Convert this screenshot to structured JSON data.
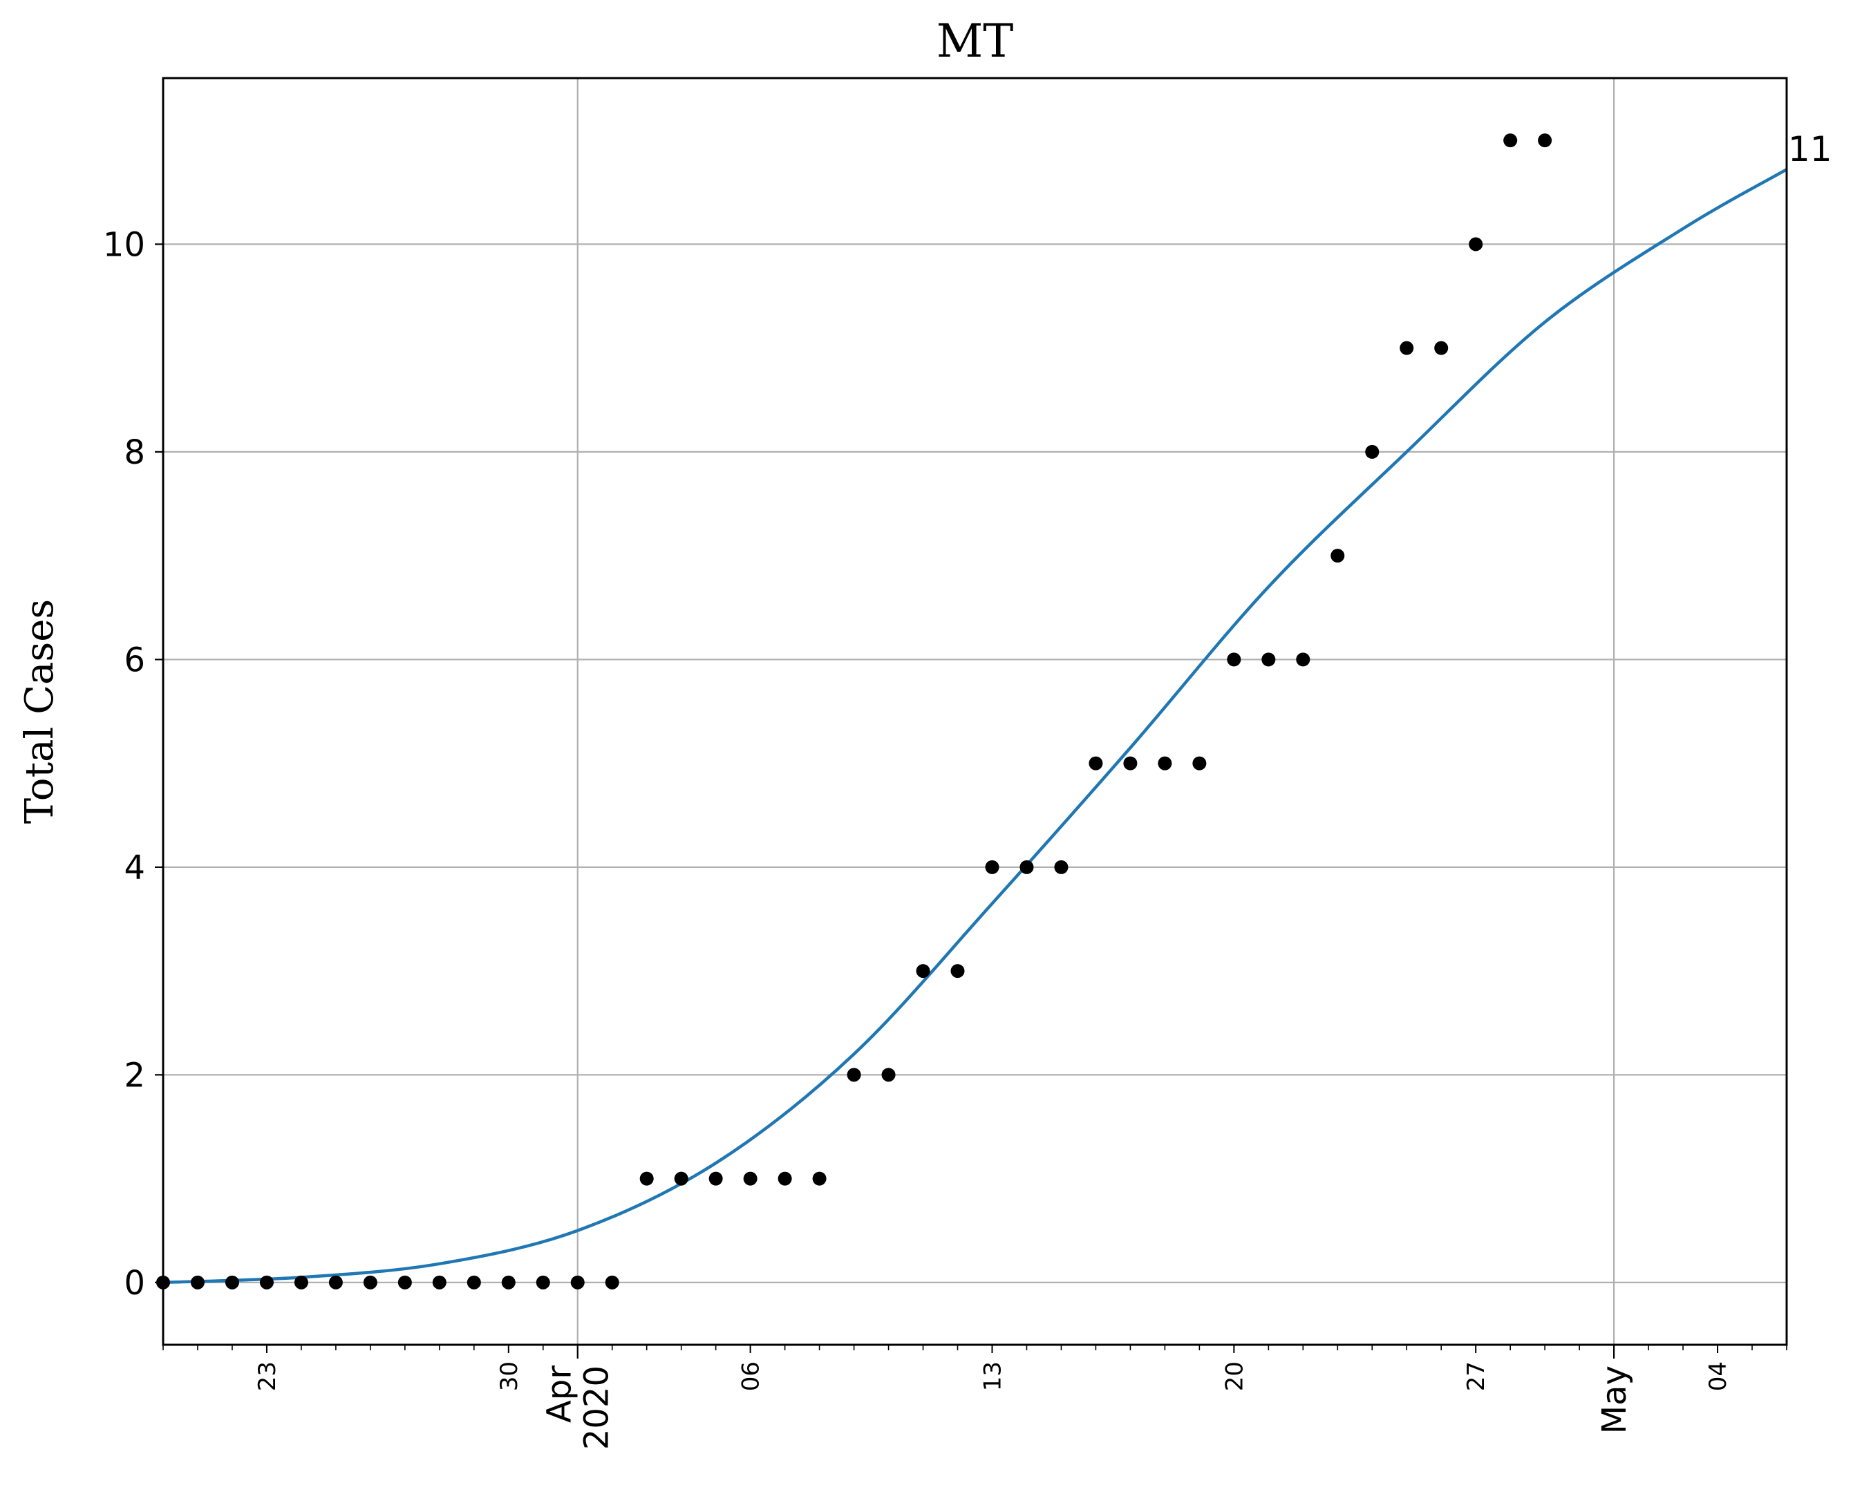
{
  "chart_data": {
    "type": "scatter",
    "title": "MT",
    "xlabel": "",
    "ylabel": "Total Cases",
    "x_start": "2020-03-20",
    "x_end": "2020-05-06",
    "ylim": [
      -0.6,
      11.6
    ],
    "grid": true,
    "yticks": [
      0,
      2,
      4,
      6,
      8,
      10
    ],
    "xticks_minor": [
      {
        "date": "2020-03-23",
        "label": "23"
      },
      {
        "date": "2020-03-30",
        "label": "30"
      },
      {
        "date": "2020-04-06",
        "label": "06"
      },
      {
        "date": "2020-04-13",
        "label": "13"
      },
      {
        "date": "2020-04-20",
        "label": "20"
      },
      {
        "date": "2020-04-27",
        "label": "27"
      },
      {
        "date": "2020-05-04",
        "label": "04"
      }
    ],
    "xticks_major": [
      {
        "date": "2020-04-01",
        "label": "Apr\n2020"
      },
      {
        "date": "2020-05-01",
        "label": "May"
      }
    ],
    "series": [
      {
        "kind": "points",
        "color": "#000000",
        "x": [
          "2020-03-20",
          "2020-03-21",
          "2020-03-22",
          "2020-03-23",
          "2020-03-24",
          "2020-03-25",
          "2020-03-26",
          "2020-03-27",
          "2020-03-28",
          "2020-03-29",
          "2020-03-30",
          "2020-03-31",
          "2020-04-01",
          "2020-04-02",
          "2020-04-03",
          "2020-04-04",
          "2020-04-05",
          "2020-04-06",
          "2020-04-07",
          "2020-04-08",
          "2020-04-09",
          "2020-04-10",
          "2020-04-11",
          "2020-04-12",
          "2020-04-13",
          "2020-04-14",
          "2020-04-15",
          "2020-04-16",
          "2020-04-17",
          "2020-04-18",
          "2020-04-19",
          "2020-04-20",
          "2020-04-21",
          "2020-04-22",
          "2020-04-23",
          "2020-04-24",
          "2020-04-25",
          "2020-04-26",
          "2020-04-27",
          "2020-04-28",
          "2020-04-29"
        ],
        "values": [
          0,
          0,
          0,
          0,
          0,
          0,
          0,
          0,
          0,
          0,
          0,
          0,
          0,
          0,
          1,
          1,
          1,
          1,
          1,
          1,
          2,
          2,
          3,
          3,
          4,
          4,
          4,
          5,
          5,
          5,
          5,
          6,
          6,
          6,
          7,
          8,
          9,
          9,
          10,
          11,
          11
        ]
      },
      {
        "kind": "fit",
        "color": "#1f77b4",
        "x": [
          "2020-03-20",
          "2020-03-24",
          "2020-03-28",
          "2020-04-01",
          "2020-04-05",
          "2020-04-09",
          "2020-04-13",
          "2020-04-17",
          "2020-04-21",
          "2020-04-25",
          "2020-04-29",
          "2020-05-03",
          "2020-05-06"
        ],
        "values": [
          0.0,
          0.05,
          0.18,
          0.5,
          1.15,
          2.2,
          3.65,
          5.15,
          6.7,
          8.0,
          9.25,
          10.15,
          10.72
        ]
      }
    ],
    "end_label": "11"
  }
}
